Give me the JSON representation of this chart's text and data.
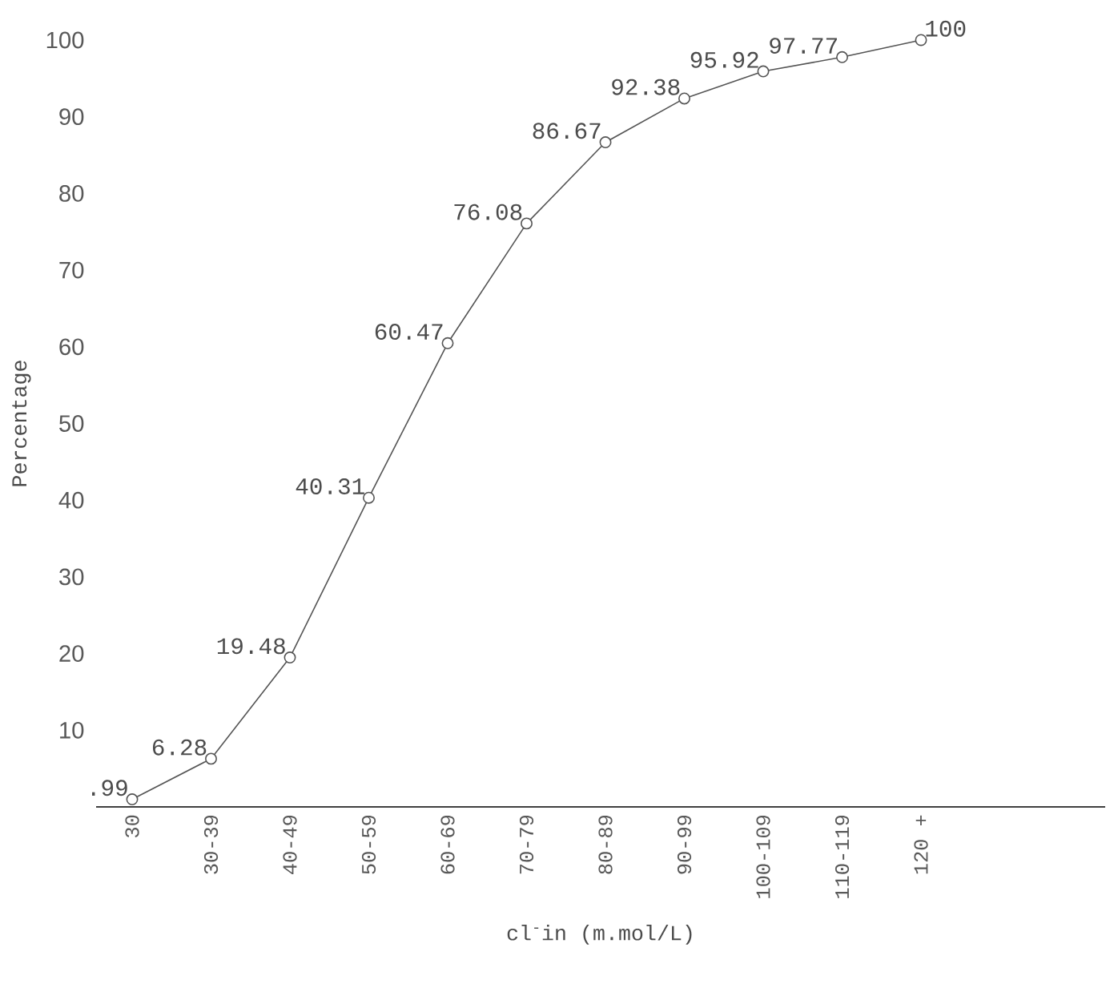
{
  "chart_data": {
    "type": "line",
    "xlabel": "cl$^{-}$in (m.mol/L)",
    "ylabel": "Percentage",
    "categories": [
      "30",
      "30-39",
      "40-49",
      "50-59",
      "60-69",
      "70-79",
      "80-89",
      "90-99",
      "100-109",
      "110-119",
      "120 +"
    ],
    "series": [
      {
        "color": "#555555",
        "values": [
          0.99,
          6.28,
          19.48,
          40.31,
          60.47,
          76.08,
          86.67,
          92.38,
          95.92,
          97.77,
          100
        ],
        "value_labels": [
          ".99",
          "6.28",
          "19.48",
          "40.31",
          "60.47",
          "76.08",
          "86.67",
          "92.38",
          "95.92",
          "97.77",
          "100"
        ]
      }
    ],
    "ylim": [
      0,
      100
    ],
    "yticks": [
      10,
      20,
      30,
      40,
      50,
      60,
      70,
      80,
      90,
      100
    ],
    "marker": "circle",
    "line_style": "solid"
  }
}
